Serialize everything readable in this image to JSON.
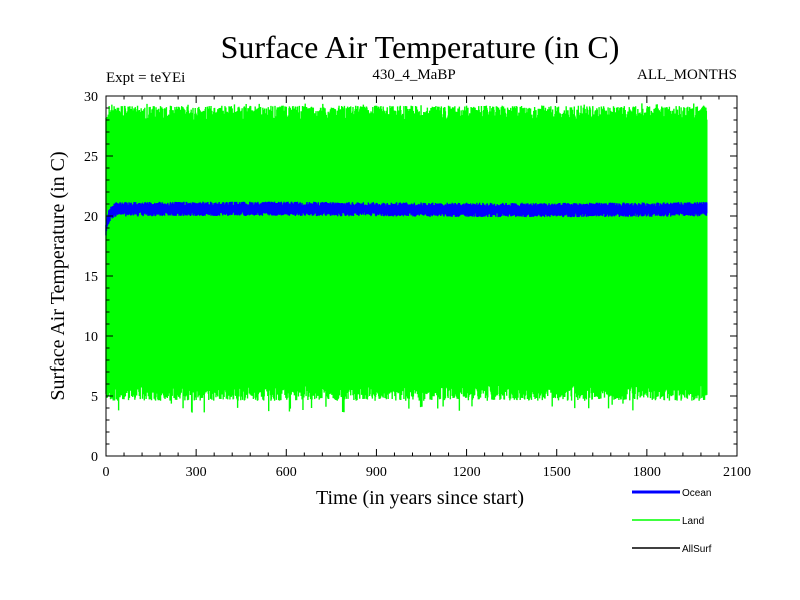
{
  "chart_data": {
    "type": "line",
    "title": "Surface Air Temperature (in C)",
    "subtitle_left": "Expt = teYEi",
    "subtitle_center": "430_4_MaBP",
    "subtitle_right": "ALL_MONTHS",
    "xlabel": "Time (in years since start)",
    "ylabel": "Surface Air Temperature (in C)",
    "xlim": [
      0,
      2100
    ],
    "ylim": [
      0,
      30
    ],
    "x_ticks": [
      0,
      300,
      600,
      900,
      1200,
      1500,
      1800,
      2100
    ],
    "y_ticks": [
      0,
      5,
      10,
      15,
      20,
      25,
      30
    ],
    "x_end": 2000,
    "legend_position": "bottom-right",
    "series": [
      {
        "name": "Ocean",
        "color": "#0000ff",
        "typical_min": 20.2,
        "typical_max": 21.0,
        "start_value": 18.9
      },
      {
        "name": "Land",
        "color": "#00ff00",
        "typical_min": 5.0,
        "typical_max": 28.8,
        "extreme_min": 3.6,
        "extreme_max": 29.4
      },
      {
        "name": "AllSurf",
        "color": "#000000"
      }
    ]
  }
}
